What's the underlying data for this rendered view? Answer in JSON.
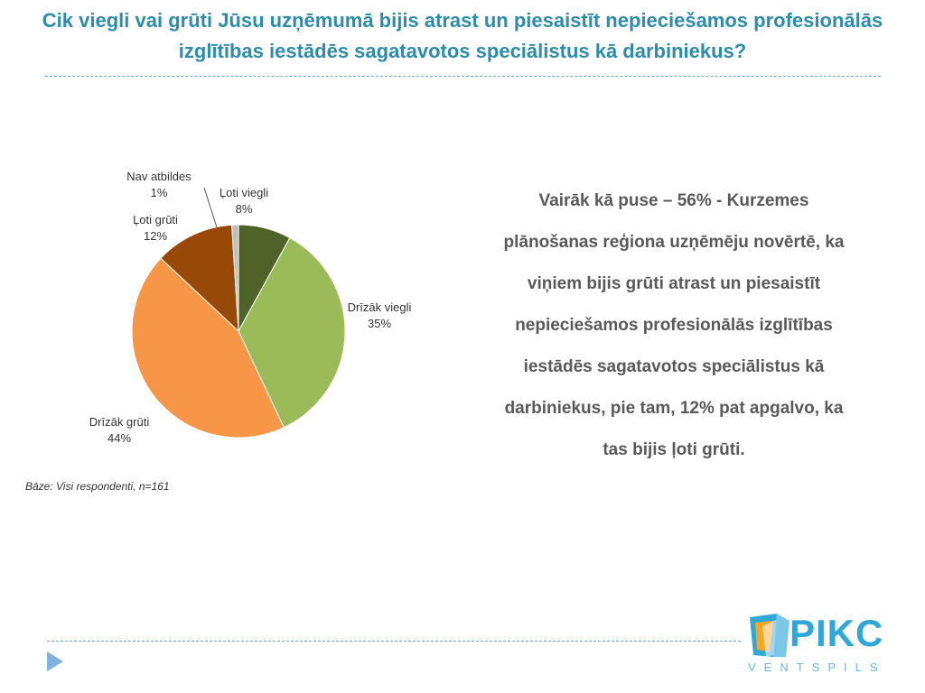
{
  "title": "Cik viegli vai grūti  Jūsu uzņēmumā bijis atrast un piesaistīt nepieciešamos profesionālās izglītības iestādēs sagatavotos speciālistus kā darbiniekus?",
  "base_note": "Bāze: Visi respondenti, n=161",
  "summary": "Vairāk kā puse – 56% - Kurzemes plānošanas reģiona uzņēmēju novērtē, ka viņiem bijis grūti atrast un piesaistīt nepieciešamos profesionālās izglītības iestādēs sagatavotos speciālistus kā darbiniekus, pie tam, 12% pat apgalvo, ka tas bijis ļoti grūti.",
  "logo": {
    "name": "PIKC",
    "subtitle": "VENTSPILS"
  },
  "chart_data": {
    "type": "pie",
    "categories": [
      "Ļoti viegli",
      "Drīzāk viegli",
      "Drīzāk grūti",
      "Ļoti grūti",
      "Nav atbildes"
    ],
    "values": [
      8,
      35,
      44,
      12,
      1
    ],
    "labels": [
      "8%",
      "35%",
      "44%",
      "12%",
      "1%"
    ],
    "colors": [
      "#4f6228",
      "#9bbb59",
      "#f79646",
      "#984807",
      "#bfbfbf"
    ],
    "start": "12 o'clock",
    "direction": "clockwise"
  }
}
